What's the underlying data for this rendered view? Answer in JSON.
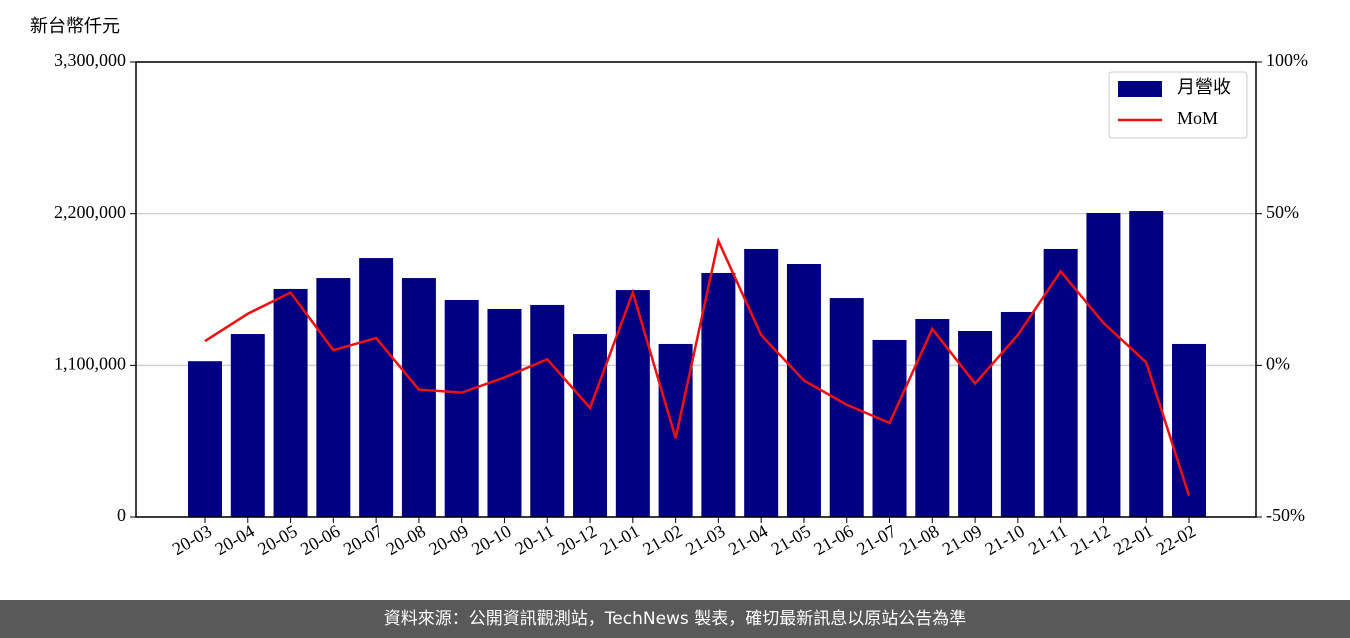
{
  "chart_data": {
    "type": "bar",
    "y_label": "新台幣仟元",
    "categories": [
      "20-03",
      "20-04",
      "20-05",
      "20-06",
      "20-07",
      "20-08",
      "20-09",
      "20-10",
      "20-11",
      "20-12",
      "21-01",
      "21-02",
      "21-03",
      "21-04",
      "21-05",
      "21-06",
      "21-07",
      "21-08",
      "21-09",
      "21-10",
      "21-11",
      "21-12",
      "22-01",
      "22-02"
    ],
    "series": [
      {
        "name": "月營收",
        "type": "bar",
        "color": "#000080",
        "axis": "y",
        "values": [
          1130000,
          1327000,
          1654000,
          1733000,
          1878000,
          1733000,
          1574000,
          1509000,
          1538000,
          1327000,
          1646000,
          1255000,
          1770000,
          1944000,
          1835000,
          1588000,
          1284000,
          1436000,
          1349000,
          1487000,
          1944000,
          2205000,
          2219000,
          1255000
        ]
      },
      {
        "name": "MoM",
        "type": "line",
        "color": "#ee1111",
        "axis": "y2",
        "values": [
          8,
          17,
          24,
          5,
          9,
          -8,
          -9,
          -4,
          2,
          -14,
          24,
          -24,
          41,
          10,
          -5,
          -13,
          -19,
          12,
          -6,
          10,
          31,
          14,
          1,
          -43
        ]
      }
    ],
    "ylim": [
      0,
      3300000
    ],
    "yticks": [
      0,
      {
        "value": 1100000,
        "label": "1,100,000"
      },
      {
        "value": 2200000,
        "label": "2,200,000"
      },
      {
        "value": 3300000,
        "label": "3,300,000"
      }
    ],
    "y2lim": [
      -50,
      100
    ],
    "y2ticks": [
      {
        "value": -50,
        "label": "-50%"
      },
      {
        "value": 0,
        "label": "0%"
      },
      {
        "value": 50,
        "label": "50%"
      },
      {
        "value": 100,
        "label": "100%"
      }
    ],
    "grid": true,
    "legend": "upper right",
    "footer": "資料來源：公開資訊觀測站，TechNews 製表，確切最新訊息以原站公告為準"
  }
}
